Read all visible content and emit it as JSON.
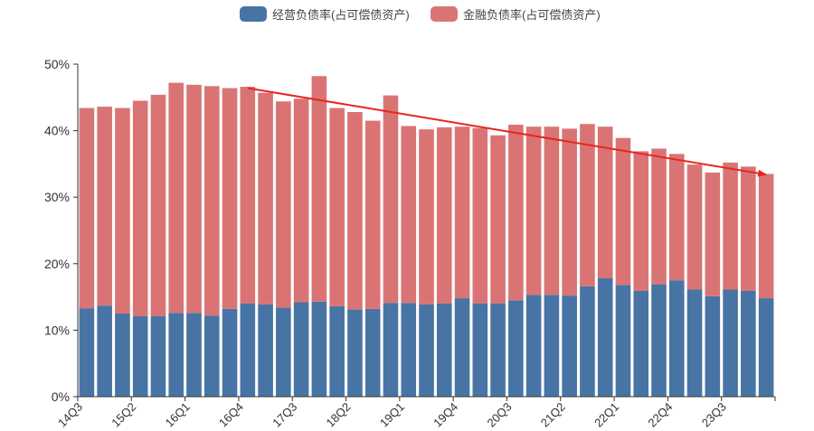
{
  "legend": {
    "items": [
      {
        "label": "经营负债率(占可偿债资产)",
        "color": "#4874a5"
      },
      {
        "label": "金融负债率(占可偿债资产)",
        "color": "#da7474"
      }
    ]
  },
  "chart_data": {
    "type": "bar",
    "stacked": true,
    "categories": [
      "14Q3",
      "14Q4",
      "15Q1",
      "15Q2",
      "15Q3",
      "15Q4",
      "16Q1",
      "16Q2",
      "16Q3",
      "16Q4",
      "17Q1",
      "17Q2",
      "17Q3",
      "17Q4",
      "18Q1",
      "18Q2",
      "18Q3",
      "18Q4",
      "19Q1",
      "19Q2",
      "19Q3",
      "19Q4",
      "20Q1",
      "20Q2",
      "20Q3",
      "20Q4",
      "21Q1",
      "21Q2",
      "21Q3",
      "21Q4",
      "22Q1",
      "22Q2",
      "22Q3",
      "22Q4",
      "23Q1",
      "23Q2",
      "23Q3",
      "23Q4",
      "24Q1"
    ],
    "tick_labels": [
      "14Q3",
      "15Q2",
      "16Q1",
      "16Q4",
      "17Q3",
      "18Q2",
      "19Q1",
      "19Q4",
      "20Q3",
      "21Q2",
      "22Q1",
      "22Q4",
      "23Q3"
    ],
    "series": [
      {
        "name": "经营负债率(占可偿债资产)",
        "color": "#4874a5",
        "values": [
          13.3,
          13.7,
          12.5,
          12.1,
          12.1,
          12.6,
          12.6,
          12.2,
          13.2,
          14.0,
          13.9,
          13.4,
          14.2,
          14.3,
          13.6,
          13.1,
          13.2,
          14.1,
          14.1,
          13.9,
          14.0,
          14.8,
          14.0,
          14.0,
          14.5,
          15.3,
          15.3,
          15.2,
          16.6,
          17.8,
          16.8,
          15.9,
          16.9,
          17.5,
          16.1,
          15.1,
          16.1,
          15.9,
          14.8
        ]
      },
      {
        "name": "金融负债率(占可偿债资产)",
        "color": "#da7474",
        "values": [
          30.1,
          29.9,
          30.9,
          32.4,
          33.3,
          34.6,
          34.3,
          34.5,
          33.2,
          32.6,
          31.8,
          31.0,
          30.6,
          33.9,
          29.8,
          29.7,
          28.3,
          31.2,
          26.6,
          26.3,
          26.5,
          25.8,
          26.4,
          25.3,
          26.4,
          25.3,
          25.3,
          25.1,
          24.4,
          22.8,
          22.1,
          21.0,
          20.4,
          19.0,
          18.8,
          18.6,
          19.1,
          18.7,
          18.7
        ]
      }
    ],
    "ylim": [
      0,
      50
    ],
    "y_ticks": [
      "0%",
      "10%",
      "20%",
      "30%",
      "40%",
      "50%"
    ],
    "grid": false,
    "legend_position": "top-center",
    "annotation": {
      "type": "arrow",
      "color": "#e8251f",
      "from_category": "16Q4",
      "from_value": 46.4,
      "to_category": "24Q1",
      "to_value": 33.4
    }
  }
}
